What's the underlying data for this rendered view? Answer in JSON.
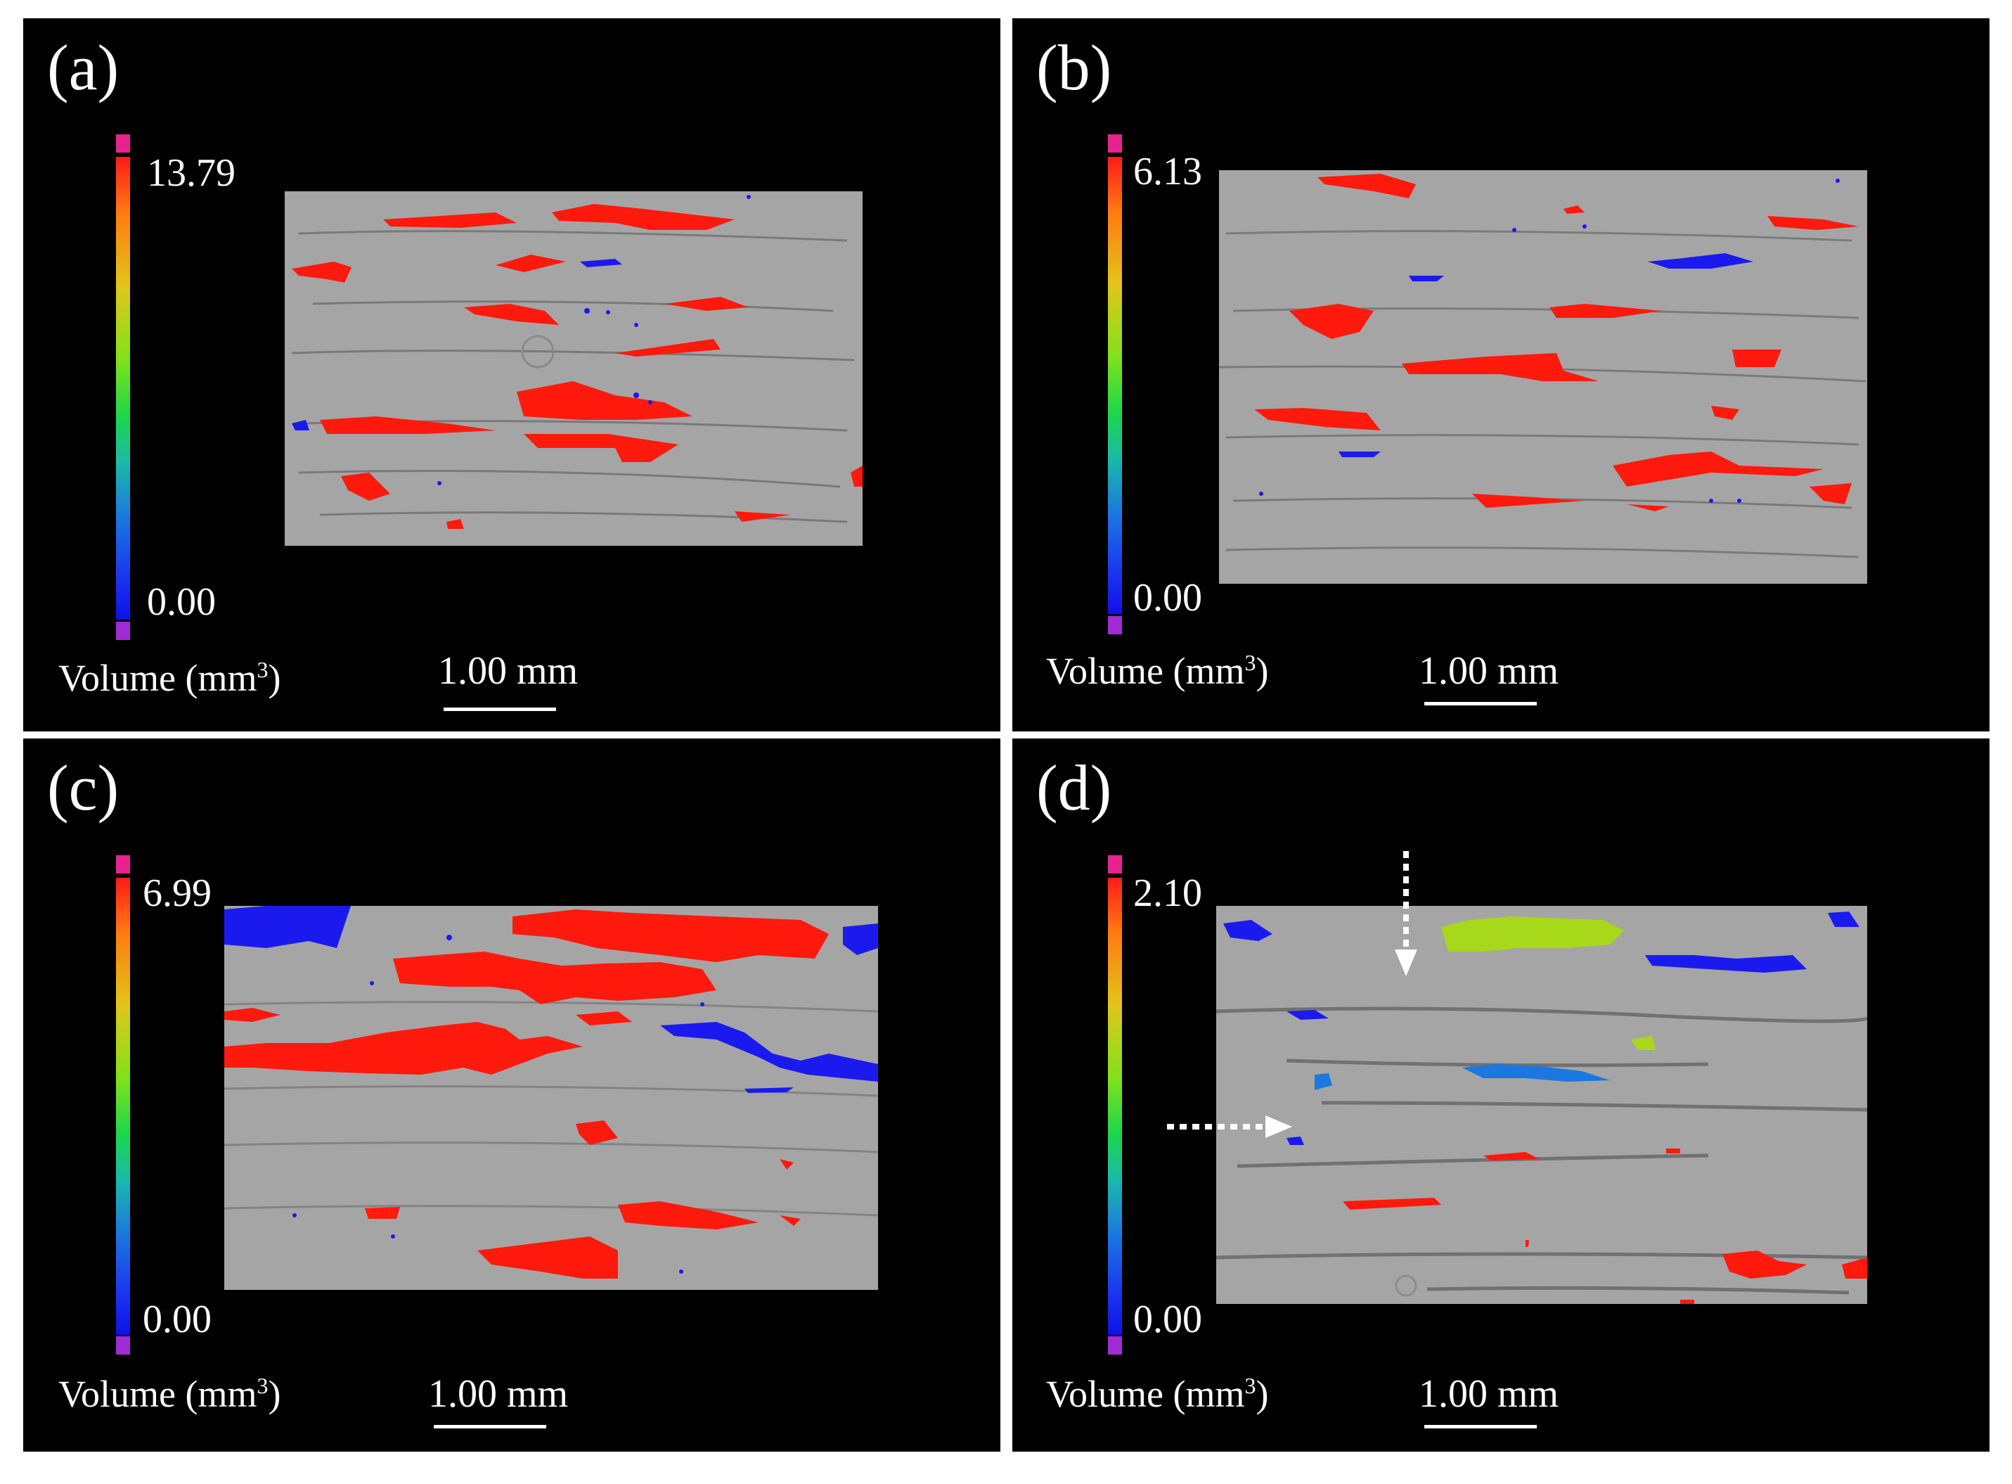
{
  "panels": {
    "a": {
      "label": "(a)",
      "colorbar": {
        "max": "13.79",
        "min": "0.00"
      },
      "volume_label": "Volume (mm",
      "volume_sup": "3",
      "volume_close": ")",
      "scale": "1.00 mm"
    },
    "b": {
      "label": "(b)",
      "colorbar": {
        "max": "6.13",
        "min": "0.00"
      },
      "volume_label": "Volume (mm",
      "volume_sup": "3",
      "volume_close": ")",
      "scale": "1.00 mm"
    },
    "c": {
      "label": "(c)",
      "colorbar": {
        "max": "6.99",
        "min": "0.00"
      },
      "volume_label": "Volume (mm",
      "volume_sup": "3",
      "volume_close": ")",
      "scale": "1.00 mm"
    },
    "d": {
      "label": "(d)",
      "colorbar": {
        "max": "2.10",
        "min": "0.00"
      },
      "volume_label": "Volume (mm",
      "volume_sup": "3",
      "volume_close": ")",
      "scale": "1.00 mm"
    }
  },
  "colors": {
    "background": "#000000",
    "scan_gray": "#a5a5a5",
    "void_large": "#ff1a0d",
    "void_small": "#1a1aee",
    "void_mid": "#a8d81a",
    "void_mid_blue": "#1a78e0",
    "colorbar_top_cap": "#e8228e",
    "colorbar_bottom_cap": "#a12bd4"
  }
}
